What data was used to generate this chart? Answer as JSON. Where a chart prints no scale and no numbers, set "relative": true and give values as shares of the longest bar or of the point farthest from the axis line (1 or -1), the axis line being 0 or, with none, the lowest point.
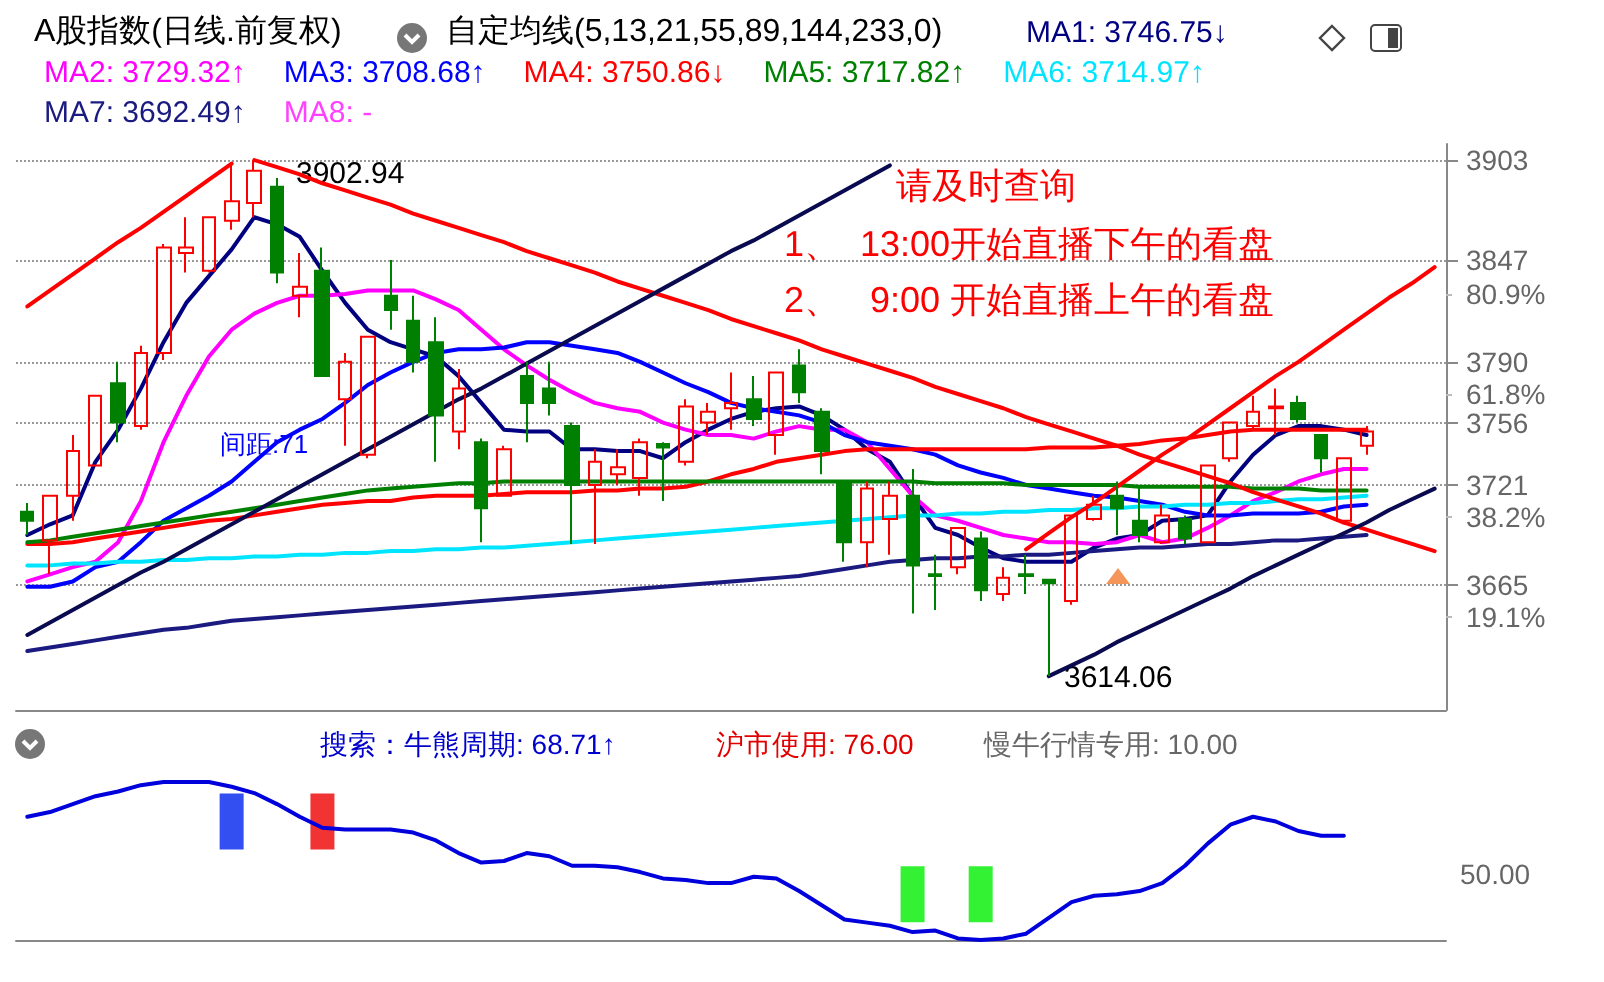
{
  "chart_data": [
    {
      "type": "candlestick",
      "title": "A股指数(日线.前复权)",
      "subtitle": "自定均线(5,13,21,55,89,144,233,0)",
      "categories": [
        null,
        null,
        null,
        null,
        null,
        null,
        null,
        null,
        null,
        null,
        null,
        null,
        null,
        null,
        null,
        null,
        null,
        null,
        null,
        null,
        null,
        null,
        null,
        null,
        null,
        null,
        null,
        null,
        null,
        null,
        null,
        null,
        null,
        null,
        null,
        null,
        null,
        null,
        null,
        null,
        null,
        null,
        null,
        null,
        null,
        null,
        null,
        null,
        null,
        null,
        null,
        null,
        null,
        null,
        null,
        null,
        null,
        null,
        null,
        null,
        null,
        null,
        null
      ],
      "ohlc": [
        [
          3706,
          3711,
          3693,
          3701
        ],
        [
          3690,
          3715,
          3671,
          3715
        ],
        [
          3715,
          3749,
          3701,
          3740
        ],
        [
          3732,
          3771,
          3732,
          3771
        ],
        [
          3778,
          3790,
          3745,
          3756
        ],
        [
          3754,
          3799,
          3752,
          3795
        ],
        [
          3795,
          3856,
          3791,
          3854
        ],
        [
          3851,
          3871,
          3840,
          3854
        ],
        [
          3841,
          3871,
          3840,
          3871
        ],
        [
          3869,
          3901,
          3864,
          3880
        ],
        [
          3879,
          3902.94,
          3871,
          3897
        ],
        [
          3888,
          3893,
          3834,
          3840
        ],
        [
          3827,
          3851,
          3815,
          3832
        ],
        [
          3841,
          3854,
          3782,
          3782
        ],
        [
          3769,
          3795,
          3743,
          3790
        ],
        [
          3738,
          3804,
          3736,
          3804
        ],
        [
          3827,
          3847,
          3808,
          3819
        ],
        [
          3813,
          3827,
          3784,
          3790
        ],
        [
          3801,
          3815,
          3734,
          3760
        ],
        [
          3751,
          3786,
          3741,
          3775
        ],
        [
          3745,
          3747,
          3689,
          3708
        ],
        [
          3715,
          3743,
          3715,
          3741
        ],
        [
          3782,
          3790,
          3745,
          3767
        ],
        [
          3775,
          3790,
          3760,
          3767
        ],
        [
          3754,
          3756,
          3688,
          3721
        ],
        [
          3721,
          3741,
          3688,
          3734
        ],
        [
          3727,
          3741,
          3721,
          3731
        ],
        [
          3725,
          3747,
          3715,
          3745
        ],
        [
          3744,
          3745,
          3712,
          3742
        ],
        [
          3734,
          3769,
          3732,
          3765
        ],
        [
          3756,
          3767,
          3749,
          3762
        ],
        [
          3764,
          3784,
          3752,
          3767
        ],
        [
          3769,
          3782,
          3754,
          3758
        ],
        [
          3749,
          3784,
          3738,
          3784
        ],
        [
          3788,
          3797,
          3767,
          3773
        ],
        [
          3762,
          3764,
          3727,
          3740
        ],
        [
          3723,
          3723,
          3678,
          3689
        ],
        [
          3689,
          3723,
          3675,
          3719
        ],
        [
          3702,
          3723,
          3682,
          3715
        ],
        [
          3715,
          3730,
          3649,
          3676
        ],
        [
          3671,
          3682,
          3651,
          3670
        ],
        [
          3675,
          3697,
          3671,
          3697
        ],
        [
          3691,
          3695,
          3656,
          3662
        ],
        [
          3660,
          3675,
          3656,
          3669
        ],
        [
          3671,
          3682,
          3660,
          3670
        ],
        [
          3668,
          3668,
          3614.06,
          3666
        ],
        [
          3656,
          3704,
          3654,
          3704
        ],
        [
          3702,
          3715,
          3701,
          3710
        ],
        [
          3715,
          3723,
          3693,
          3708
        ],
        [
          3701,
          3721,
          3689,
          3693
        ],
        [
          3689,
          3710,
          3688,
          3704
        ],
        [
          3702,
          3704,
          3688,
          3691
        ],
        [
          3689,
          3732,
          3689,
          3732
        ],
        [
          3736,
          3756,
          3734,
          3756
        ],
        [
          3754,
          3771,
          3752,
          3762
        ],
        [
          3764,
          3775,
          3749,
          3765
        ],
        [
          3767,
          3771,
          3756,
          3758
        ],
        [
          3749,
          3749,
          3728,
          3736
        ],
        [
          3701,
          3736,
          3699,
          3736
        ],
        [
          3743,
          3754,
          3738,
          3751
        ],
        null,
        null,
        null
      ],
      "series": [
        {
          "type": "line",
          "name": "MA1: 3746.75↓",
          "color": "#000080",
          "values": [
            3693,
            3699,
            3704,
            3734,
            3752,
            3775,
            3801,
            3823,
            3838,
            3853,
            3871,
            3867,
            3860,
            3841,
            3823,
            3808,
            3801,
            3797,
            3793,
            3782,
            3767,
            3752,
            3751,
            3751,
            3741,
            3741,
            3740,
            3740,
            3736,
            3745,
            3752,
            3758,
            3762,
            3764,
            3765,
            3760,
            3752,
            3741,
            3734,
            3715,
            3697,
            3693,
            3686,
            3680,
            3678,
            3678,
            3678,
            3686,
            3691,
            3693,
            3701,
            3702,
            3704,
            3723,
            3738,
            3749,
            3754,
            3754,
            3752,
            3749,
            null,
            null,
            null
          ]
        },
        {
          "type": "line",
          "name": "MA2: 3729.32↑",
          "color": "#ff00ff",
          "values": [
            3667,
            3671,
            3675,
            3678,
            3689,
            3712,
            3745,
            3771,
            3793,
            3808,
            3817,
            3823,
            3827,
            3827,
            3828,
            3830,
            3830,
            3830,
            3825,
            3819,
            3808,
            3797,
            3788,
            3780,
            3773,
            3767,
            3764,
            3762,
            3756,
            3752,
            3749,
            3749,
            3747,
            3751,
            3754,
            3752,
            3752,
            3745,
            3730,
            3715,
            3704,
            3701,
            3697,
            3693,
            3691,
            3689,
            3689,
            3688,
            3689,
            3693,
            3689,
            3691,
            3697,
            3704,
            3712,
            3717,
            3723,
            3727,
            3730,
            3730,
            null,
            null,
            null
          ]
        },
        {
          "type": "line",
          "name": "MA3: 3708.68↑",
          "color": "#0000ff",
          "values": [
            3664,
            3664,
            3667,
            3675,
            3678,
            3689,
            3701,
            3708,
            3715,
            3723,
            3734,
            3745,
            3752,
            3758,
            3767,
            3777,
            3784,
            3790,
            3795,
            3797,
            3797,
            3798,
            3801,
            3801,
            3799,
            3797,
            3795,
            3790,
            3784,
            3778,
            3773,
            3767,
            3764,
            3762,
            3760,
            3756,
            3749,
            3745,
            3743,
            3741,
            3738,
            3732,
            3728,
            3725,
            3721,
            3719,
            3717,
            3715,
            3714,
            3712,
            3710,
            3706,
            3704,
            3704,
            3705,
            3705,
            3705,
            3706,
            3709,
            3710,
            null,
            null,
            null
          ]
        },
        {
          "type": "line",
          "name": "MA4: 3750.86↓",
          "color": "#ff0000",
          "values": [
            3688,
            3688,
            3689,
            3691,
            3693,
            3695,
            3697,
            3699,
            3701,
            3702,
            3704,
            3706,
            3708,
            3710,
            3711,
            3712,
            3712,
            3714,
            3715,
            3715,
            3715,
            3716,
            3717,
            3717,
            3717,
            3718,
            3718,
            3719,
            3719,
            3720,
            3723,
            3727,
            3730,
            3734,
            3736,
            3738,
            3740,
            3741,
            3741,
            3741,
            3741,
            3741,
            3741,
            3741,
            3741,
            3742,
            3742,
            3742,
            3743,
            3744,
            3746,
            3747,
            3749,
            3751,
            3752,
            3752,
            3752,
            3752,
            3752,
            3752,
            null,
            null,
            null
          ]
        },
        {
          "type": "line",
          "name": "MA5: 3717.82↑",
          "color": "#008000",
          "values": [
            3689,
            3690,
            3692,
            3694,
            3696,
            3698,
            3700,
            3702,
            3704,
            3706,
            3708,
            3710,
            3712,
            3714,
            3716,
            3718,
            3719,
            3720,
            3721,
            3722,
            3722,
            3723,
            3723,
            3723,
            3723,
            3723,
            3723,
            3723,
            3723,
            3723,
            3723,
            3723,
            3723,
            3723,
            3723,
            3723,
            3723,
            3723,
            3723,
            3723,
            3722,
            3722,
            3722,
            3722,
            3721,
            3721,
            3721,
            3721,
            3721,
            3720,
            3720,
            3720,
            3720,
            3720,
            3719,
            3719,
            3719,
            3718,
            3718,
            3718,
            null,
            null,
            null
          ]
        },
        {
          "type": "line",
          "name": "MA6: 3714.97↑",
          "color": "#00e5ff",
          "values": [
            3676,
            3676,
            3677,
            3677,
            3678,
            3678,
            3679,
            3679,
            3680,
            3680,
            3681,
            3681,
            3682,
            3682,
            3683,
            3683,
            3684,
            3684,
            3685,
            3685,
            3686,
            3686,
            3687,
            3688,
            3689,
            3690,
            3691,
            3692,
            3693,
            3694,
            3695,
            3696,
            3697,
            3698,
            3699,
            3700,
            3701,
            3702,
            3703,
            3704,
            3704,
            3705,
            3705,
            3706,
            3706,
            3707,
            3707,
            3708,
            3708,
            3709,
            3709,
            3710,
            3710,
            3711,
            3711,
            3712,
            3713,
            3713,
            3714,
            3715,
            null,
            null,
            null
          ]
        },
        {
          "type": "line",
          "name": "MA7: 3692.49↑",
          "color": "#1a1a80",
          "values": [
            3628,
            3630,
            3632,
            3634,
            3636,
            3638,
            3640,
            3641,
            3643,
            3645,
            3646,
            3647,
            3648,
            3649,
            3650,
            3651,
            3652,
            3653,
            3654,
            3655,
            3656,
            3657,
            3658,
            3659,
            3660,
            3661,
            3662,
            3663,
            3664,
            3665,
            3666,
            3667,
            3668,
            3669,
            3670,
            3672,
            3674,
            3676,
            3678,
            3679,
            3680,
            3680,
            3681,
            3681,
            3682,
            3682,
            3683,
            3684,
            3685,
            3686,
            3686,
            3687,
            3688,
            3688,
            3689,
            3690,
            3690,
            3691,
            3692,
            3693,
            null,
            null,
            null
          ]
        },
        {
          "type": "line",
          "name": "MA8: -",
          "color": "#ff40ff",
          "values": [
            null,
            null,
            null,
            null,
            null,
            null,
            null,
            null,
            null,
            null,
            null,
            null,
            null,
            null,
            null,
            null,
            null,
            null,
            null,
            null,
            null,
            null,
            null,
            null,
            null,
            null,
            null,
            null,
            null,
            null,
            null,
            null,
            null,
            null,
            null,
            null,
            null,
            null,
            null,
            null,
            null,
            null,
            null,
            null,
            null,
            null,
            null,
            null,
            null,
            null,
            null,
            null,
            null,
            null,
            null,
            null,
            null,
            null,
            null,
            null,
            null,
            null,
            null
          ]
        },
        {
          "type": "line",
          "color": "#ff0000",
          "values": [
            3821,
            3830,
            3839,
            3848,
            3857,
            3865,
            3874,
            3883,
            3892,
            3901,
            null,
            null,
            null,
            null,
            null,
            null,
            null,
            null,
            null,
            null,
            null,
            null,
            null,
            null,
            null,
            null,
            null,
            null,
            null,
            null,
            null,
            null,
            null,
            null,
            null,
            null,
            null,
            null,
            null,
            null,
            null,
            null,
            null,
            null,
            null,
            null,
            null,
            null,
            null,
            null,
            null,
            null,
            null,
            null,
            null,
            null,
            null,
            null,
            null,
            null,
            null,
            null,
            null
          ]
        },
        {
          "type": "line",
          "color": "#ff0000",
          "values": [
            null,
            null,
            null,
            null,
            null,
            null,
            null,
            null,
            null,
            null,
            3903,
            3899,
            3895,
            3890,
            3886,
            3882,
            3878,
            3873,
            3869,
            3865,
            3861,
            3857,
            3852,
            3848,
            3844,
            3840,
            3835,
            3831,
            3827,
            3823,
            3819,
            3814,
            3810,
            3806,
            3802,
            3797,
            3793,
            3789,
            3785,
            3781,
            3776,
            3772,
            3768,
            3764,
            3759,
            3755,
            3751,
            3747,
            3743,
            3738,
            3734,
            3730,
            3726,
            3722,
            3717,
            3713,
            3709,
            3705,
            3700,
            3696,
            3692,
            3688,
            3684
          ]
        },
        {
          "type": "line",
          "color": "#0a0a50",
          "values": [
            3637,
            3644,
            3651,
            3658,
            3665,
            3672,
            3678,
            3685,
            3692,
            3699,
            3706,
            3713,
            3720,
            3727,
            3734,
            3741,
            3748,
            3755,
            3762,
            3769,
            3775,
            3782,
            3789,
            3796,
            3803,
            3810,
            3817,
            3824,
            3831,
            3838,
            3845,
            3852,
            3858,
            3865,
            3872,
            3879,
            3886,
            3893,
            3900,
            null,
            null,
            null,
            null,
            null,
            null,
            null,
            null,
            null,
            null,
            null,
            null,
            null,
            null,
            null,
            null,
            null,
            null,
            null,
            null,
            null,
            null,
            null,
            null
          ]
        },
        {
          "type": "line",
          "color": "#0a0a50",
          "values": [
            null,
            null,
            null,
            null,
            null,
            null,
            null,
            null,
            null,
            null,
            null,
            null,
            null,
            null,
            null,
            null,
            null,
            null,
            null,
            null,
            null,
            null,
            null,
            null,
            null,
            null,
            null,
            null,
            null,
            null,
            null,
            null,
            null,
            null,
            null,
            null,
            null,
            null,
            null,
            null,
            null,
            null,
            null,
            null,
            null,
            3614,
            3620,
            3626,
            3633,
            3639,
            3645,
            3651,
            3657,
            3663,
            3670,
            3676,
            3682,
            3688,
            3694,
            3700,
            3707,
            3713,
            3719
          ]
        },
        {
          "type": "line",
          "color": "#ff0000",
          "values": [
            null,
            null,
            null,
            null,
            null,
            null,
            null,
            null,
            null,
            null,
            null,
            null,
            null,
            null,
            null,
            null,
            null,
            null,
            null,
            null,
            null,
            null,
            null,
            null,
            null,
            null,
            null,
            null,
            null,
            null,
            null,
            null,
            null,
            null,
            null,
            null,
            null,
            null,
            null,
            null,
            null,
            null,
            null,
            null,
            3685,
            3694,
            3703,
            3711,
            3720,
            3729,
            3738,
            3746,
            3755,
            3764,
            3773,
            3782,
            3790,
            3799,
            3808,
            3817,
            3826,
            3834,
            3843
          ]
        }
      ],
      "ylim": [
        3595,
        3912
      ],
      "yticks": [
        3665,
        3721,
        3756,
        3790,
        3847,
        3903
      ],
      "y2lim": [
        1.3,
        109.5
      ],
      "y2ticks": [
        {
          "value": 80.9,
          "label": "80.9%"
        },
        {
          "value": 61.8,
          "label": "61.8%"
        },
        {
          "value": 38.2,
          "label": "38.2%"
        },
        {
          "value": 19.1,
          "label": "19.1%"
        }
      ],
      "annotations": [
        "请及时查询",
        "1、  13:00开始直播下午的看盘",
        "2、   9:00 开始直播上午的看盘",
        "间距:71",
        "3902.94",
        "3614.06"
      ],
      "grid": "y",
      "legend": "top left",
      "marker": "none",
      "tick_labels": "y"
    },
    {
      "type": "line",
      "relative": true,
      "categories": [
        null,
        null,
        null,
        null,
        null,
        null,
        null,
        null,
        null,
        null,
        null,
        null,
        null,
        null,
        null,
        null,
        null,
        null,
        null,
        null,
        null,
        null,
        null,
        null,
        null,
        null,
        null,
        null,
        null,
        null,
        null,
        null,
        null,
        null,
        null,
        null,
        null,
        null,
        null,
        null,
        null,
        null,
        null,
        null,
        null,
        null,
        null,
        null,
        null,
        null,
        null,
        null,
        null,
        null,
        null,
        null,
        null,
        null,
        null,
        null,
        null,
        null,
        null
      ],
      "series": [
        {
          "type": "line",
          "color": "#0000dd",
          "values": [
            0.78,
            0.81,
            0.86,
            0.91,
            0.94,
            0.98,
            1,
            1,
            1,
            0.97,
            0.93,
            0.86,
            0.78,
            0.71,
            0.7,
            0.7,
            0.7,
            0.68,
            0.63,
            0.55,
            0.49,
            0.5,
            0.55,
            0.53,
            0.47,
            0.47,
            0.46,
            0.43,
            0.39,
            0.38,
            0.36,
            0.36,
            0.4,
            0.39,
            0.31,
            0.22,
            0.13,
            0.11,
            0.09,
            0.05,
            0.06,
            0.01,
            0,
            0.01,
            0.04,
            0.14,
            0.24,
            0.28,
            0.29,
            0.31,
            0.36,
            0.47,
            0.61,
            0.73,
            0.78,
            0.75,
            0.69,
            0.66,
            0.66,
            null,
            null,
            null,
            null
          ]
        },
        {
          "type": "scatter",
          "marker": "square",
          "color": "#00ee00",
          "values": [
            null,
            null,
            null,
            null,
            null,
            null,
            null,
            null,
            null,
            null,
            null,
            null,
            null,
            null,
            null,
            null,
            null,
            null,
            null,
            null,
            null,
            null,
            null,
            null,
            null,
            null,
            null,
            null,
            null,
            null,
            null,
            null,
            null,
            null,
            null,
            null,
            null,
            null,
            null,
            0.29,
            null,
            null,
            0.29,
            null,
            null,
            null,
            null,
            null,
            null,
            null,
            null,
            null,
            null,
            null,
            null,
            null,
            null,
            null,
            null,
            null,
            null,
            null,
            null
          ]
        },
        {
          "type": "scatter",
          "marker": "square",
          "color": "#0022ee",
          "values": [
            null,
            null,
            null,
            null,
            null,
            null,
            null,
            null,
            null,
            0.75,
            null,
            null,
            null,
            null,
            null,
            null,
            null,
            null,
            null,
            null,
            null,
            null,
            null,
            null,
            null,
            null,
            null,
            null,
            null,
            null,
            null,
            null,
            null,
            null,
            null,
            null,
            null,
            null,
            null,
            null,
            null,
            null,
            null,
            null,
            null,
            null,
            null,
            null,
            null,
            null,
            null,
            null,
            null,
            null,
            null,
            null,
            null,
            null,
            null,
            null,
            null,
            null,
            null
          ]
        },
        {
          "type": "scatter",
          "marker": "square",
          "color": "#ee0000",
          "values": [
            null,
            null,
            null,
            null,
            null,
            null,
            null,
            null,
            null,
            null,
            null,
            null,
            null,
            0.75,
            null,
            null,
            null,
            null,
            null,
            null,
            null,
            null,
            null,
            null,
            null,
            null,
            null,
            null,
            null,
            null,
            null,
            null,
            null,
            null,
            null,
            null,
            null,
            null,
            null,
            null,
            null,
            null,
            null,
            null,
            null,
            null,
            null,
            null,
            null,
            null,
            null,
            null,
            null,
            null,
            null,
            null,
            null,
            null,
            null,
            null,
            null,
            null,
            null
          ]
        }
      ],
      "annotations": [
        "搜索：牛熊周期: 68.71↑",
        "沪市使用: 76.00",
        "慢牛行情专用: 10.00",
        "50.00"
      ],
      "marker": "none"
    }
  ]
}
